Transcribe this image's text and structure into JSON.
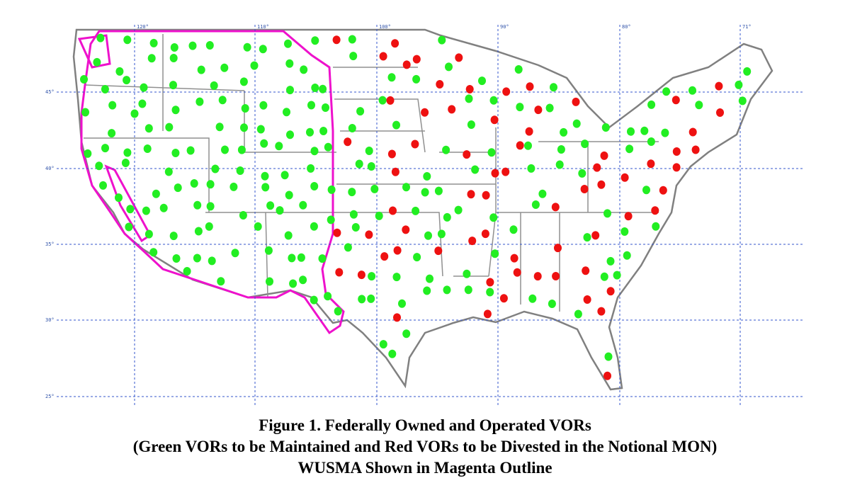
{
  "map": {
    "longitude_labels": [
      "120°",
      "110°",
      "100°",
      "90°",
      "80°",
      "71°"
    ],
    "latitude_labels": [
      "45°",
      "40°",
      "35°",
      "30°",
      "25°"
    ]
  },
  "caption": {
    "lines": [
      "Figure 1.  Federally Owned and Operated VORs",
      "(Green VORs to be Maintained and Red VORs to be Divested in the Notional MON)",
      "WUSMA Shown in Magenta Outline"
    ]
  }
}
